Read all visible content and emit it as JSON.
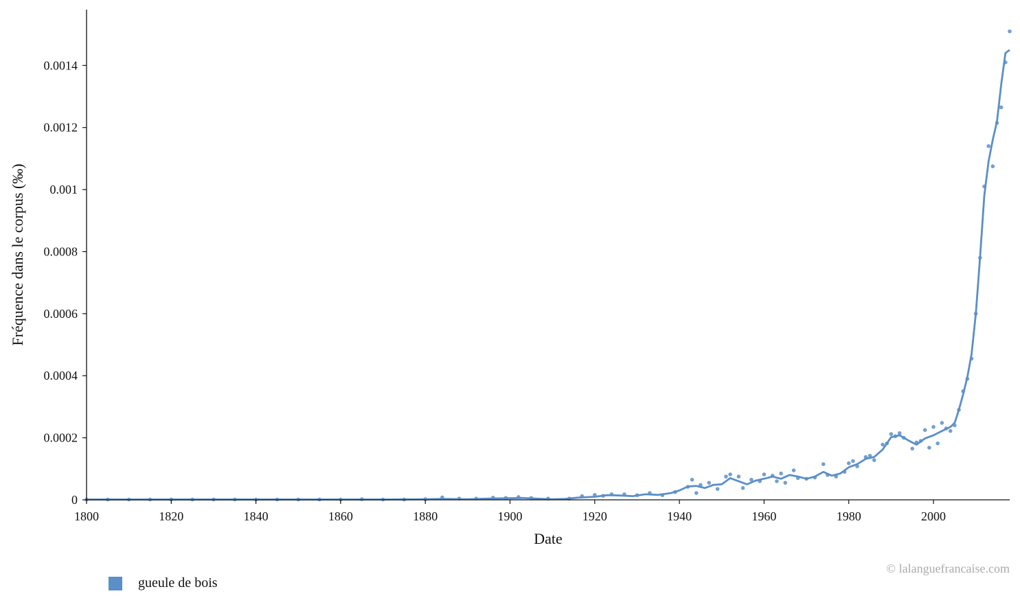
{
  "chart_data": {
    "type": "line",
    "xlabel": "Date",
    "ylabel": "Fréquence dans le corpus (‰)",
    "xlim": [
      1800,
      2018
    ],
    "ylim": [
      0,
      0.00158
    ],
    "x_ticks": [
      1800,
      1820,
      1840,
      1860,
      1880,
      1900,
      1920,
      1940,
      1960,
      1980,
      2000
    ],
    "y_ticks": [
      0,
      0.0002,
      0.0004,
      0.0006,
      0.0008,
      0.001,
      0.0012,
      0.0014
    ],
    "y_tick_labels": [
      "0",
      "0.0002",
      "0.0004",
      "0.0006",
      "0.0008",
      "0.001",
      "0.0012",
      "0.0014"
    ],
    "grid": false,
    "legend_position": "bottom-left",
    "series": [
      {
        "name": "gueule de bois",
        "color": "#5a8fc8",
        "smoothed": [
          [
            1800,
            1e-06
          ],
          [
            1820,
            1e-06
          ],
          [
            1840,
            1e-06
          ],
          [
            1860,
            1e-06
          ],
          [
            1870,
            1e-06
          ],
          [
            1880,
            2e-06
          ],
          [
            1884,
            3e-06
          ],
          [
            1890,
            2e-06
          ],
          [
            1895,
            4e-06
          ],
          [
            1900,
            5e-06
          ],
          [
            1903,
            6e-06
          ],
          [
            1906,
            4e-06
          ],
          [
            1910,
            2e-06
          ],
          [
            1913,
            3e-06
          ],
          [
            1916,
            7e-06
          ],
          [
            1920,
            1e-05
          ],
          [
            1923,
            1.5e-05
          ],
          [
            1926,
            1.4e-05
          ],
          [
            1929,
            1.2e-05
          ],
          [
            1932,
            1.8e-05
          ],
          [
            1935,
            1.6e-05
          ],
          [
            1938,
            2.2e-05
          ],
          [
            1940,
            3e-05
          ],
          [
            1942,
            4.3e-05
          ],
          [
            1944,
            4.5e-05
          ],
          [
            1946,
            3.8e-05
          ],
          [
            1948,
            4.8e-05
          ],
          [
            1950,
            5e-05
          ],
          [
            1952,
            7e-05
          ],
          [
            1954,
            6e-05
          ],
          [
            1956,
            5e-05
          ],
          [
            1958,
            6.2e-05
          ],
          [
            1960,
            6.8e-05
          ],
          [
            1962,
            7.5e-05
          ],
          [
            1964,
            6.8e-05
          ],
          [
            1966,
            8e-05
          ],
          [
            1968,
            7.5e-05
          ],
          [
            1970,
            6.8e-05
          ],
          [
            1972,
            7.5e-05
          ],
          [
            1974,
            9e-05
          ],
          [
            1976,
            7.8e-05
          ],
          [
            1978,
            8.5e-05
          ],
          [
            1980,
            0.000105
          ],
          [
            1982,
            0.000115
          ],
          [
            1984,
            0.000132
          ],
          [
            1986,
            0.000138
          ],
          [
            1988,
            0.000162
          ],
          [
            1990,
            0.000202
          ],
          [
            1992,
            0.000208
          ],
          [
            1994,
            0.000192
          ],
          [
            1996,
            0.000178
          ],
          [
            1998,
            0.000198
          ],
          [
            2000,
            0.000208
          ],
          [
            2002,
            0.000222
          ],
          [
            2004,
            0.000235
          ],
          [
            2005,
            0.000248
          ],
          [
            2006,
            0.00029
          ],
          [
            2007,
            0.00034
          ],
          [
            2008,
            0.000395
          ],
          [
            2009,
            0.00047
          ],
          [
            2010,
            0.0006
          ],
          [
            2011,
            0.00078
          ],
          [
            2012,
            0.00098
          ],
          [
            2013,
            0.00109
          ],
          [
            2014,
            0.00116
          ],
          [
            2015,
            0.00122
          ],
          [
            2016,
            0.00134
          ],
          [
            2017,
            0.00144
          ],
          [
            2018,
            0.00145
          ]
        ],
        "points": [
          [
            1800,
            1e-06
          ],
          [
            1805,
            1e-06
          ],
          [
            1810,
            1e-06
          ],
          [
            1815,
            1e-06
          ],
          [
            1820,
            1e-06
          ],
          [
            1825,
            1e-06
          ],
          [
            1830,
            1e-06
          ],
          [
            1835,
            1e-06
          ],
          [
            1840,
            1e-06
          ],
          [
            1845,
            1e-06
          ],
          [
            1850,
            1e-06
          ],
          [
            1855,
            1e-06
          ],
          [
            1860,
            1e-06
          ],
          [
            1865,
            2e-06
          ],
          [
            1870,
            1e-06
          ],
          [
            1875,
            1e-06
          ],
          [
            1880,
            2e-06
          ],
          [
            1884,
            8e-06
          ],
          [
            1888,
            4e-06
          ],
          [
            1892,
            4e-06
          ],
          [
            1896,
            7e-06
          ],
          [
            1899,
            6e-06
          ],
          [
            1902,
            9e-06
          ],
          [
            1905,
            6e-06
          ],
          [
            1909,
            4e-06
          ],
          [
            1914,
            4e-06
          ],
          [
            1917,
            1.2e-05
          ],
          [
            1920,
            1.6e-05
          ],
          [
            1922,
            1.3e-05
          ],
          [
            1924,
            1.8e-05
          ],
          [
            1927,
            1.8e-05
          ],
          [
            1930,
            1.5e-05
          ],
          [
            1933,
            2.2e-05
          ],
          [
            1936,
            1.5e-05
          ],
          [
            1939,
            2.5e-05
          ],
          [
            1942,
            4.2e-05
          ],
          [
            1943,
            6.5e-05
          ],
          [
            1944,
            2.2e-05
          ],
          [
            1945,
            4.8e-05
          ],
          [
            1947,
            5.5e-05
          ],
          [
            1949,
            3.5e-05
          ],
          [
            1951,
            7.5e-05
          ],
          [
            1952,
            8.2e-05
          ],
          [
            1954,
            7.5e-05
          ],
          [
            1955,
            3.8e-05
          ],
          [
            1957,
            6.5e-05
          ],
          [
            1959,
            6e-05
          ],
          [
            1960,
            8.2e-05
          ],
          [
            1962,
            7.8e-05
          ],
          [
            1963,
            6e-05
          ],
          [
            1964,
            8.5e-05
          ],
          [
            1965,
            5.5e-05
          ],
          [
            1967,
            9.5e-05
          ],
          [
            1968,
            7e-05
          ],
          [
            1970,
            6.8e-05
          ],
          [
            1972,
            7.2e-05
          ],
          [
            1974,
            0.000115
          ],
          [
            1975,
            8e-05
          ],
          [
            1977,
            7.5e-05
          ],
          [
            1979,
            9e-05
          ],
          [
            1980,
            0.000118
          ],
          [
            1981,
            0.000125
          ],
          [
            1982,
            0.000108
          ],
          [
            1984,
            0.000138
          ],
          [
            1985,
            0.000142
          ],
          [
            1986,
            0.000128
          ],
          [
            1988,
            0.000178
          ],
          [
            1989,
            0.000182
          ],
          [
            1990,
            0.000212
          ],
          [
            1991,
            0.000205
          ],
          [
            1992,
            0.000215
          ],
          [
            1993,
            0.0002
          ],
          [
            1995,
            0.000165
          ],
          [
            1996,
            0.000185
          ],
          [
            1997,
            0.00019
          ],
          [
            1998,
            0.000225
          ],
          [
            1999,
            0.000168
          ],
          [
            2000,
            0.000235
          ],
          [
            2001,
            0.000182
          ],
          [
            2002,
            0.000248
          ],
          [
            2003,
            0.00023
          ],
          [
            2004,
            0.000222
          ],
          [
            2005,
            0.00024
          ],
          [
            2006,
            0.00029
          ],
          [
            2007,
            0.00035
          ],
          [
            2008,
            0.00039
          ],
          [
            2009,
            0.000455
          ],
          [
            2010,
            0.0006
          ],
          [
            2011,
            0.00078
          ],
          [
            2012,
            0.00101
          ],
          [
            2013,
            0.00114
          ],
          [
            2014,
            0.001075
          ],
          [
            2015,
            0.001215
          ],
          [
            2016,
            0.001265
          ],
          [
            2017,
            0.00141
          ],
          [
            2018,
            0.00151
          ]
        ]
      }
    ]
  },
  "legend": {
    "label": "gueule de bois",
    "color": "#5a8fc8"
  },
  "watermark": "© lalanguefrancaise.com"
}
